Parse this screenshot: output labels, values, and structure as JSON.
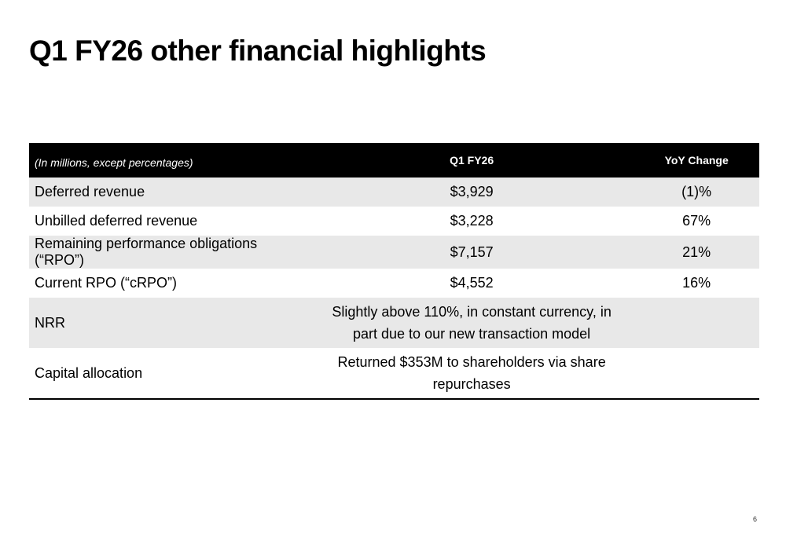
{
  "title": "Q1 FY26 other financial highlights",
  "table": {
    "headers": {
      "note": "(In millions, except percentages)",
      "period": "Q1 FY26",
      "change": "YoY Change"
    },
    "rows": [
      {
        "label": "Deferred revenue",
        "value": "$3,929",
        "yoy": "(1)%"
      },
      {
        "label": "Unbilled deferred revenue",
        "value": "$3,228",
        "yoy": "67%"
      },
      {
        "label": "Remaining performance obligations (“RPO”)",
        "value": "$7,157",
        "yoy": "21%"
      },
      {
        "label": "Current RPO (“cRPO”)",
        "value": "$4,552",
        "yoy": "16%"
      }
    ],
    "nrr": {
      "label": "NRR",
      "line1": "Slightly above 110%, in constant currency, in",
      "line2": "part due to our new transaction model"
    },
    "capital": {
      "label": "Capital allocation",
      "line1": "Returned $353M to shareholders via share",
      "line2": "repurchases"
    }
  },
  "page_number": "6"
}
